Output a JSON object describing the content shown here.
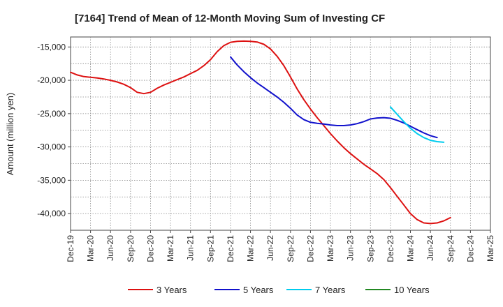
{
  "chart_data": {
    "type": "line",
    "title": "[7164]  Trend of Mean of 12-Month Moving Sum of Investing CF",
    "xlabel": "",
    "ylabel": "Amount (million yen)",
    "ylim": [
      -42500,
      -13500
    ],
    "yticks": [
      -15000,
      -20000,
      -25000,
      -30000,
      -35000,
      -40000
    ],
    "ytick_labels": [
      "-15,000",
      "-20,000",
      "-25,000",
      "-30,000",
      "-35,000",
      "-40,000"
    ],
    "x_start": "Dec-19",
    "x_end": "Mar-25",
    "xtick_labels": [
      "Dec-19",
      "Mar-20",
      "Jun-20",
      "Sep-20",
      "Dec-20",
      "Mar-21",
      "Jun-21",
      "Sep-21",
      "Dec-21",
      "Mar-22",
      "Jun-22",
      "Sep-22",
      "Dec-22",
      "Mar-23",
      "Jun-23",
      "Sep-23",
      "Dec-23",
      "Mar-24",
      "Jun-24",
      "Sep-24",
      "Dec-24",
      "Mar-25"
    ],
    "grid": true,
    "legend_position": "bottom",
    "series": [
      {
        "name": "3 Years",
        "color": "#dd1111",
        "x_index_start": 0,
        "values": [
          -18800,
          -19200,
          -19450,
          -19550,
          -19650,
          -19800,
          -20000,
          -20250,
          -20600,
          -21100,
          -21800,
          -22000,
          -21800,
          -21200,
          -20700,
          -20300,
          -19900,
          -19500,
          -19000,
          -18500,
          -17800,
          -16900,
          -15700,
          -14800,
          -14300,
          -14150,
          -14120,
          -14150,
          -14250,
          -14600,
          -15300,
          -16400,
          -17800,
          -19500,
          -21300,
          -22900,
          -24300,
          -25600,
          -26800,
          -28000,
          -29100,
          -30100,
          -31000,
          -31800,
          -32600,
          -33300,
          -34000,
          -34900,
          -36100,
          -37400,
          -38700,
          -40000,
          -40900,
          -41400,
          -41500,
          -41400,
          -41100,
          -40600
        ]
      },
      {
        "name": "5 Years",
        "color": "#1111cc",
        "x_index_start": 24,
        "values": [
          -16500,
          -17700,
          -18700,
          -19600,
          -20400,
          -21100,
          -21800,
          -22500,
          -23300,
          -24200,
          -25200,
          -25900,
          -26300,
          -26450,
          -26550,
          -26700,
          -26800,
          -26800,
          -26700,
          -26500,
          -26200,
          -25800,
          -25650,
          -25600,
          -25700,
          -26000,
          -26400,
          -26900,
          -27400,
          -27900,
          -28300,
          -28600
        ]
      },
      {
        "name": "7 Years",
        "color": "#00ccee",
        "x_index_start": 48,
        "values": [
          -24000,
          -25100,
          -26200,
          -27200,
          -28000,
          -28600,
          -29000,
          -29200,
          -29300
        ]
      },
      {
        "name": "10 Years",
        "color": "#228822",
        "x_index_start": 0,
        "values": []
      }
    ]
  }
}
